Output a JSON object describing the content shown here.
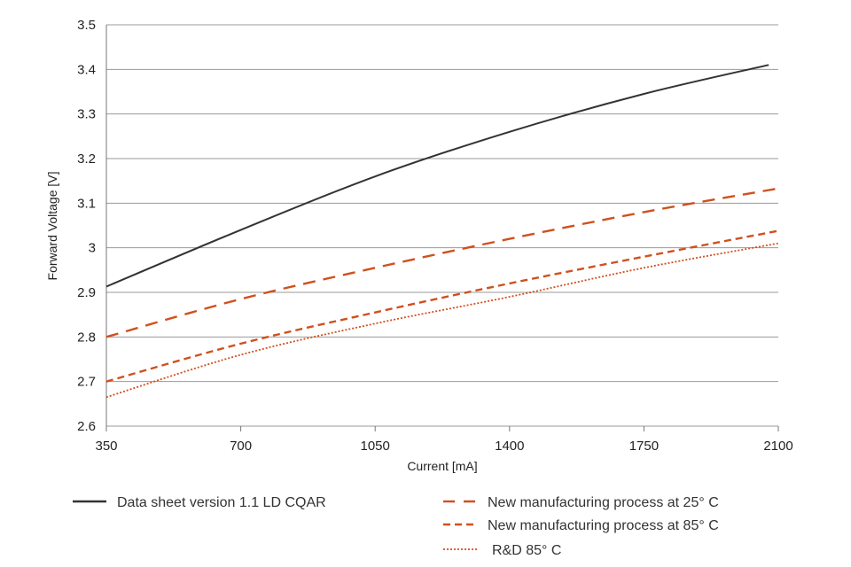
{
  "chart_data": {
    "type": "line",
    "xlabel": "Current [mA]",
    "ylabel": "Forward Voltage [V]",
    "xlim": [
      350,
      2100
    ],
    "ylim": [
      2.6,
      3.5
    ],
    "x_ticks": [
      "350",
      "700",
      "1050",
      "1400",
      "1750",
      "2100"
    ],
    "y_ticks": [
      "2.6",
      "2.7",
      "2.8",
      "2.9",
      "3",
      "3.1",
      "3.2",
      "3.3",
      "3.4",
      "3.5"
    ],
    "grid": "horizontal",
    "legend_placement": "bottom",
    "series": [
      {
        "name": "Data sheet version 1.1 LD CQAR",
        "color": "#333333",
        "style": "solid",
        "x": [
          350,
          700,
          1050,
          1400,
          1750,
          2075
        ],
        "y": [
          2.913,
          3.04,
          3.16,
          3.26,
          3.345,
          3.41
        ]
      },
      {
        "name": "New manufacturing process at 25° C",
        "color": "#d0501e",
        "style": "long-dash",
        "x": [
          350,
          700,
          1050,
          1400,
          1750,
          2100
        ],
        "y": [
          2.8,
          2.885,
          2.955,
          3.02,
          3.08,
          3.133
        ]
      },
      {
        "name": "New manufacturing process at 85° C",
        "color": "#d0501e",
        "style": "short-dash",
        "x": [
          350,
          700,
          1050,
          1400,
          1750,
          2100
        ],
        "y": [
          2.7,
          2.785,
          2.855,
          2.92,
          2.98,
          3.038
        ]
      },
      {
        "name": "R&D 85° C",
        "color": "#d0501e",
        "style": "dotted",
        "x": [
          350,
          700,
          1050,
          1400,
          1750,
          2100
        ],
        "y": [
          2.665,
          2.76,
          2.83,
          2.89,
          2.955,
          3.01
        ]
      }
    ]
  }
}
